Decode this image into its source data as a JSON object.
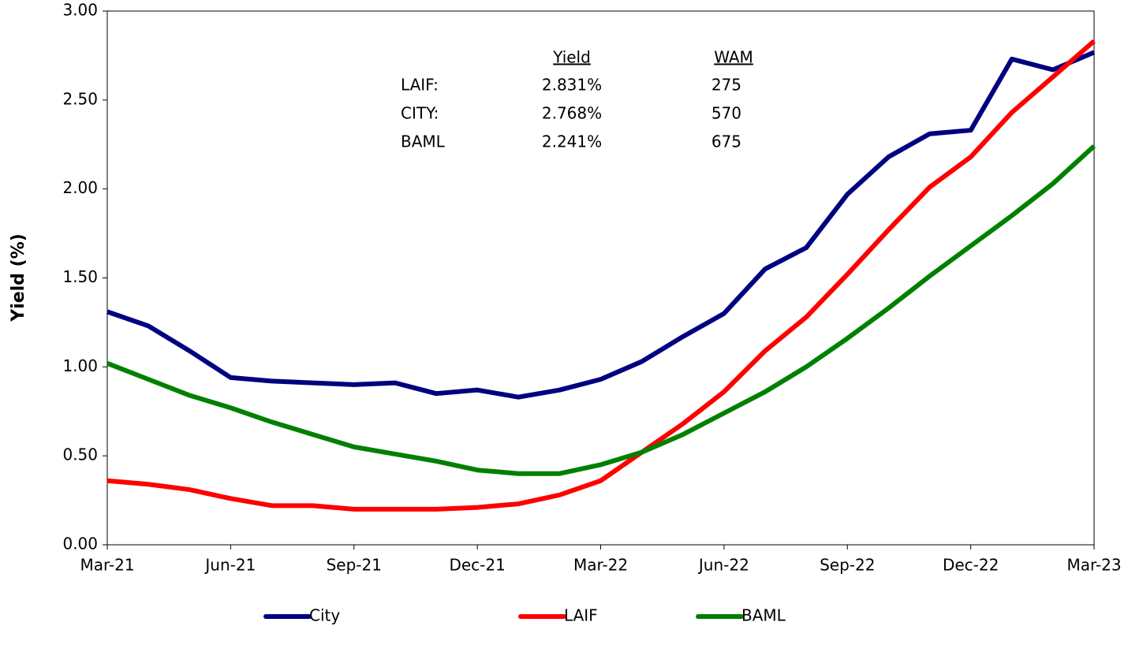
{
  "chart_data": {
    "type": "line",
    "y_label": "Yield (%)",
    "categories": [
      "Mar-21",
      null,
      null,
      "Jun-21",
      null,
      null,
      "Sep-21",
      null,
      null,
      "Dec-21",
      null,
      null,
      "Mar-22",
      null,
      null,
      "Jun-22",
      null,
      null,
      "Sep-22",
      null,
      null,
      "Dec-22",
      null,
      null,
      "Mar-23"
    ],
    "series": [
      {
        "name": "City",
        "color": "#000080",
        "values": [
          1.31,
          1.23,
          1.09,
          0.94,
          0.92,
          0.91,
          0.9,
          0.91,
          0.85,
          0.87,
          0.83,
          0.87,
          0.93,
          1.03,
          1.17,
          1.3,
          1.55,
          1.67,
          1.97,
          2.18,
          2.31,
          2.33,
          2.73,
          2.67,
          2.768
        ]
      },
      {
        "name": "LAIF",
        "color": "#ff0000",
        "values": [
          0.36,
          0.34,
          0.31,
          0.26,
          0.22,
          0.22,
          0.2,
          0.2,
          0.2,
          0.21,
          0.23,
          0.28,
          0.36,
          0.52,
          0.68,
          0.86,
          1.09,
          1.28,
          1.52,
          1.77,
          2.01,
          2.18,
          2.43,
          2.63,
          2.831
        ]
      },
      {
        "name": "BAML",
        "color": "#008000",
        "values": [
          1.02,
          0.93,
          0.84,
          0.77,
          0.69,
          0.62,
          0.55,
          0.51,
          0.47,
          0.42,
          0.4,
          0.4,
          0.45,
          0.52,
          0.62,
          0.74,
          0.86,
          1.0,
          1.16,
          1.33,
          1.51,
          1.68,
          1.85,
          2.03,
          2.241
        ]
      }
    ],
    "ylim": [
      0,
      3
    ],
    "yticks": [
      {
        "value": 0,
        "label": "0.00"
      },
      {
        "value": 0.5,
        "label": "0.50"
      },
      {
        "value": 1,
        "label": "1.00"
      },
      {
        "value": 1.5,
        "label": "1.50"
      },
      {
        "value": 2,
        "label": "2.00"
      },
      {
        "value": 2.5,
        "label": "2.50"
      },
      {
        "value": 3,
        "label": "3.00"
      }
    ],
    "grid": false,
    "legend": "bottom",
    "annotation_table": {
      "columns": [
        "Yield",
        "WAM"
      ],
      "rows": [
        {
          "label": "LAIF:",
          "yield": "2.831%",
          "wam": "275"
        },
        {
          "label": "CITY:",
          "yield": "2.768%",
          "wam": "570"
        },
        {
          "label": "BAML",
          "yield": "2.241%",
          "wam": "675"
        }
      ]
    }
  }
}
